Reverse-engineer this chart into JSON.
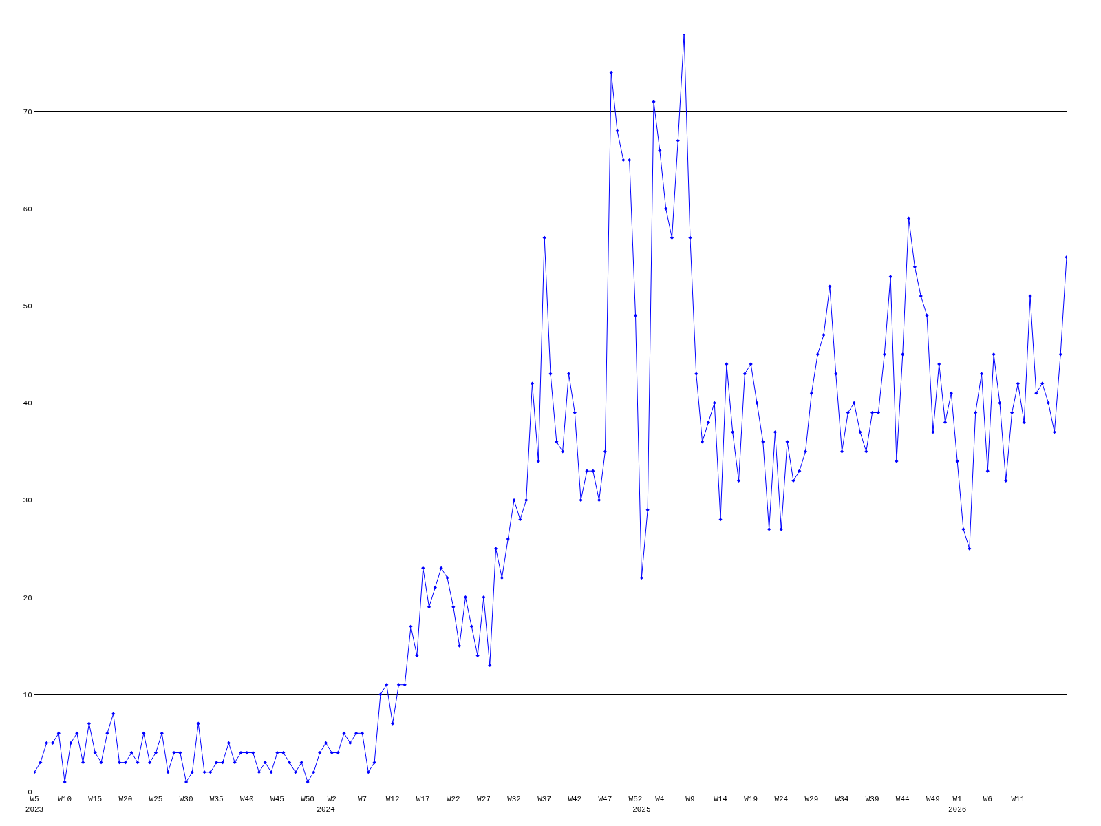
{
  "chart_data": {
    "type": "line",
    "color": "#0000ff",
    "marker": "diamond",
    "grid": "y",
    "ylim": [
      0,
      78
    ],
    "yticks": [
      0,
      10,
      20,
      30,
      40,
      50,
      60,
      70
    ],
    "categories": [
      "W5\n2023",
      null,
      null,
      null,
      null,
      "W10",
      null,
      null,
      null,
      null,
      "W15",
      null,
      null,
      null,
      null,
      "W20",
      null,
      null,
      null,
      null,
      "W25",
      null,
      null,
      null,
      null,
      "W30",
      null,
      null,
      null,
      null,
      "W35",
      null,
      null,
      null,
      null,
      "W40",
      null,
      null,
      null,
      null,
      "W45",
      null,
      null,
      null,
      null,
      "W50",
      null,
      null,
      "\n2024",
      "W2",
      null,
      null,
      null,
      null,
      "W7",
      null,
      null,
      null,
      null,
      "W12",
      null,
      null,
      null,
      null,
      "W17",
      null,
      null,
      null,
      null,
      "W22",
      null,
      null,
      null,
      null,
      "W27",
      null,
      null,
      null,
      null,
      "W32",
      null,
      null,
      null,
      null,
      "W37",
      null,
      null,
      null,
      null,
      "W42",
      null,
      null,
      null,
      null,
      "W47",
      null,
      null,
      null,
      null,
      "W52",
      "\n2025",
      null,
      null,
      "W4",
      null,
      null,
      null,
      null,
      "W9",
      null,
      null,
      null,
      null,
      "W14",
      null,
      null,
      null,
      null,
      "W19",
      null,
      null,
      null,
      null,
      "W24",
      null,
      null,
      null,
      null,
      "W29",
      null,
      null,
      null,
      null,
      "W34",
      null,
      null,
      null,
      null,
      "W39",
      null,
      null,
      null,
      null,
      "W44",
      null,
      null,
      null,
      null,
      "W49",
      null,
      null,
      null,
      "W1\n2026",
      null,
      null,
      null,
      null,
      "W6",
      null,
      null,
      null,
      null,
      "W11",
      null,
      null,
      null,
      null,
      null,
      null,
      null,
      null
    ],
    "values": [
      2,
      3,
      5,
      5,
      6,
      1,
      5,
      6,
      3,
      7,
      4,
      3,
      6,
      8,
      3,
      3,
      4,
      3,
      6,
      3,
      4,
      6,
      2,
      4,
      4,
      1,
      2,
      7,
      2,
      2,
      3,
      3,
      5,
      3,
      4,
      4,
      4,
      2,
      3,
      2,
      4,
      4,
      3,
      2,
      3,
      1,
      2,
      4,
      5,
      4,
      4,
      6,
      5,
      6,
      6,
      2,
      3,
      10,
      11,
      7,
      11,
      11,
      17,
      14,
      23,
      19,
      21,
      23,
      22,
      19,
      15,
      20,
      17,
      14,
      20,
      13,
      25,
      22,
      26,
      30,
      28,
      30,
      42,
      34,
      57,
      43,
      36,
      35,
      43,
      39,
      30,
      33,
      33,
      30,
      35,
      74,
      68,
      65,
      65,
      49,
      22,
      29,
      71,
      66,
      60,
      57,
      67,
      78,
      57,
      43,
      36,
      38,
      40,
      28,
      44,
      37,
      32,
      43,
      44,
      40,
      36,
      27,
      37,
      27,
      36,
      32,
      33,
      35,
      41,
      45,
      47,
      52,
      43,
      35,
      39,
      40,
      37,
      35,
      39,
      39,
      45,
      53,
      34,
      45,
      59,
      54,
      51,
      49,
      37,
      44,
      38,
      41,
      34,
      27,
      25,
      39,
      43,
      33,
      45,
      40,
      32,
      39,
      42,
      38,
      51,
      41,
      42,
      40,
      37,
      45,
      55
    ]
  }
}
